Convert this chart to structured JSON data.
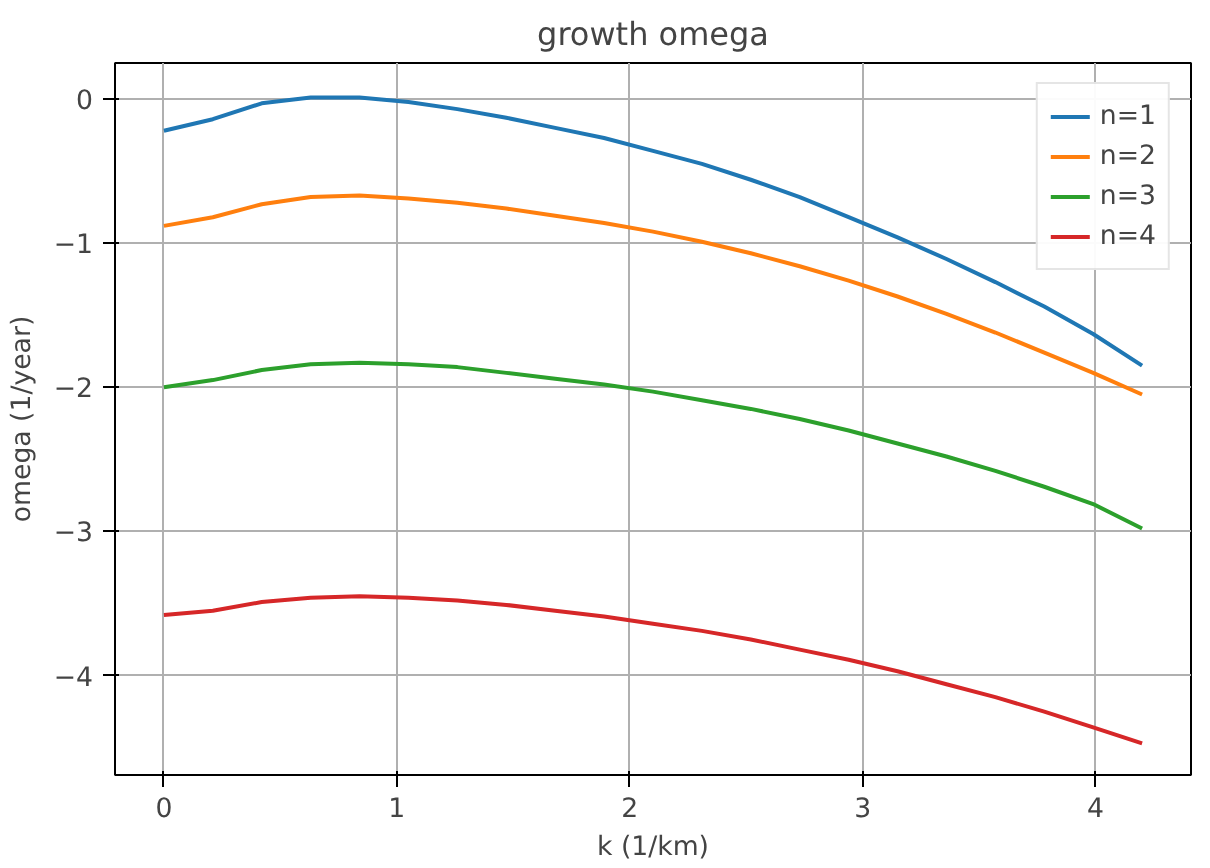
{
  "chart_data": {
    "type": "line",
    "title": "growth omega",
    "xlabel": "k (1/km)",
    "ylabel": "omega (1/year)",
    "x": [
      0,
      0.21,
      0.42,
      0.63,
      0.84,
      1.05,
      1.26,
      1.47,
      1.68,
      1.89,
      2.1,
      2.31,
      2.52,
      2.73,
      2.94,
      3.15,
      3.36,
      3.57,
      3.78,
      3.99,
      4.2
    ],
    "series": [
      {
        "name": "n=1",
        "color": "#1f77b4",
        "values": [
          -0.22,
          -0.14,
          -0.03,
          0.01,
          0.01,
          -0.02,
          -0.07,
          -0.13,
          -0.2,
          -0.27,
          -0.36,
          -0.45,
          -0.56,
          -0.68,
          -0.82,
          -0.96,
          -1.11,
          -1.27,
          -1.44,
          -1.63,
          -1.85
        ]
      },
      {
        "name": "n=2",
        "color": "#ff7f0e",
        "values": [
          -0.88,
          -0.82,
          -0.73,
          -0.68,
          -0.67,
          -0.69,
          -0.72,
          -0.76,
          -0.81,
          -0.86,
          -0.92,
          -0.99,
          -1.07,
          -1.16,
          -1.26,
          -1.37,
          -1.49,
          -1.62,
          -1.76,
          -1.9,
          -2.05
        ]
      },
      {
        "name": "n=3",
        "color": "#2ca02c",
        "values": [
          -2.0,
          -1.95,
          -1.88,
          -1.84,
          -1.83,
          -1.84,
          -1.86,
          -1.9,
          -1.94,
          -1.98,
          -2.03,
          -2.09,
          -2.15,
          -2.22,
          -2.3,
          -2.39,
          -2.48,
          -2.58,
          -2.69,
          -2.81,
          -2.98
        ]
      },
      {
        "name": "n=4",
        "color": "#d62728",
        "values": [
          -3.58,
          -3.55,
          -3.49,
          -3.46,
          -3.45,
          -3.46,
          -3.48,
          -3.51,
          -3.55,
          -3.59,
          -3.64,
          -3.69,
          -3.75,
          -3.82,
          -3.89,
          -3.97,
          -4.06,
          -4.15,
          -4.25,
          -4.36,
          -4.47
        ]
      }
    ],
    "xlim": [
      -0.21,
      4.41
    ],
    "ylim": [
      -4.69,
      0.25
    ],
    "xticks": [
      0,
      1,
      2,
      3,
      4
    ],
    "yticks": [
      0,
      -1,
      -2,
      -3,
      -4
    ],
    "grid": true,
    "legend": "top right"
  }
}
